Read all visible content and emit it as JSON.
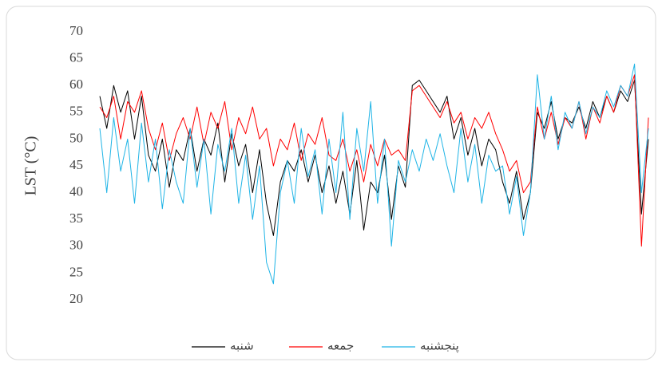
{
  "chart_data": {
    "type": "line",
    "y_label": "LST (°C)",
    "ylim": [
      20,
      70
    ],
    "yticks": [
      20,
      25,
      30,
      35,
      40,
      45,
      50,
      55,
      60,
      65,
      70
    ],
    "grid": false,
    "series": [
      {
        "name": "شنبه",
        "color": "#000000",
        "values": [
          58,
          52,
          60,
          55,
          59,
          50,
          58,
          47,
          44,
          50,
          41,
          48,
          46,
          52,
          44,
          50,
          47,
          53,
          42,
          51,
          45,
          49,
          40,
          48,
          38,
          32,
          42,
          46,
          44,
          48,
          42,
          47,
          40,
          45,
          38,
          44,
          36,
          46,
          33,
          42,
          40,
          47,
          35,
          45,
          41,
          60,
          61,
          59,
          57,
          55,
          58,
          50,
          54,
          47,
          52,
          45,
          50,
          48,
          42,
          38,
          44,
          35,
          40,
          55,
          52,
          57,
          50,
          54,
          53,
          56,
          52,
          57,
          54,
          58,
          55,
          59,
          57,
          61,
          36,
          50
        ]
      },
      {
        "name": "جمعه",
        "color": "#ff0000",
        "values": [
          56,
          54,
          58,
          50,
          57,
          55,
          59,
          52,
          48,
          53,
          46,
          51,
          54,
          50,
          56,
          49,
          55,
          52,
          57,
          48,
          54,
          51,
          56,
          50,
          52,
          45,
          50,
          48,
          53,
          46,
          51,
          49,
          54,
          47,
          46,
          50,
          44,
          48,
          42,
          49,
          45,
          50,
          47,
          48,
          46,
          59,
          60,
          58,
          56,
          54,
          57,
          53,
          55,
          50,
          54,
          52,
          55,
          51,
          48,
          44,
          46,
          40,
          42,
          56,
          50,
          55,
          49,
          54,
          52,
          57,
          50,
          56,
          53,
          58,
          55,
          60,
          58,
          62,
          30,
          54
        ]
      },
      {
        "name": "پنجشنبه",
        "color": "#1fb4e6",
        "values": [
          52,
          40,
          54,
          44,
          50,
          38,
          53,
          42,
          50,
          37,
          48,
          42,
          38,
          52,
          41,
          50,
          36,
          49,
          44,
          52,
          38,
          47,
          35,
          45,
          27,
          23,
          40,
          46,
          38,
          52,
          43,
          48,
          36,
          50,
          40,
          55,
          35,
          52,
          44,
          57,
          38,
          50,
          30,
          46,
          42,
          48,
          44,
          50,
          46,
          51,
          45,
          40,
          52,
          42,
          49,
          38,
          47,
          44,
          45,
          36,
          43,
          32,
          40,
          62,
          50,
          58,
          48,
          55,
          52,
          57,
          51,
          56,
          54,
          59,
          56,
          60,
          58,
          64,
          40,
          52
        ]
      }
    ]
  }
}
